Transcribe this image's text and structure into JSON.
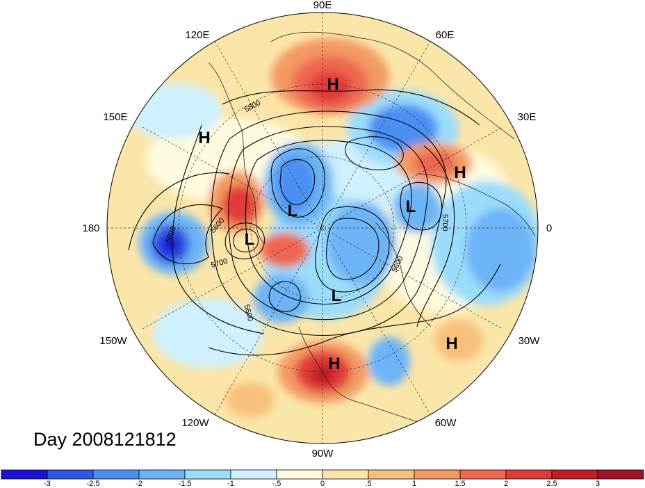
{
  "title": "Day 2008121812",
  "longitude_labels": {
    "e90": "90E",
    "e120": "120E",
    "e60": "60E",
    "e150": "150E",
    "e30": "30E",
    "d180": "180",
    "d0": "0",
    "w150": "150W",
    "w30": "30W",
    "w120": "120W",
    "w60": "60W",
    "w90": "90W"
  },
  "pressure_centers": {
    "h1": "H",
    "h2": "H",
    "h3": "H",
    "h4": "H",
    "h5": "H",
    "l1": "L",
    "l2": "L",
    "l3": "L",
    "l4": "L"
  },
  "contour_labels": {
    "c5800a": "5800",
    "c5800b": "5800",
    "c5600a": "5600",
    "c5700a": "5700",
    "c5700b": "5700",
    "c5600b": "5600",
    "c5600c": "5600"
  },
  "colorbar": {
    "ticks": [
      "-3",
      "-2.5",
      "-2",
      "-1.5",
      "-1",
      "-.5",
      "0",
      ".5",
      "1",
      "1.5",
      "2",
      "2.5",
      "3"
    ],
    "colors": [
      "#1c12d6",
      "#2e58e6",
      "#4c8ff2",
      "#6db4f7",
      "#9bdcfb",
      "#cff0fd",
      "#fefbe0",
      "#fbe6a9",
      "#f7c07c",
      "#f39a64",
      "#ee6650",
      "#e23a37",
      "#c21d24",
      "#a1122a"
    ]
  }
}
